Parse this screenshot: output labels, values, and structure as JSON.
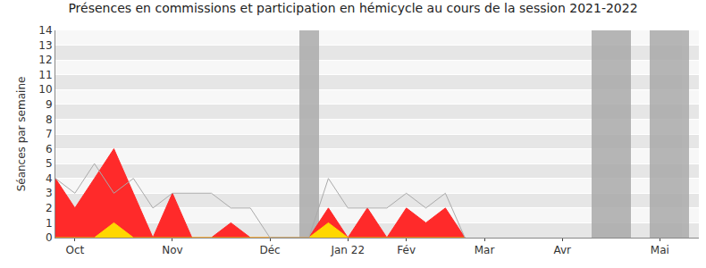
{
  "chart_data": {
    "type": "line",
    "title": "Présences en commissions et participation en hémicycle au cours de la session 2021-2022",
    "y_label": "Séances par semaine",
    "categories": [
      null,
      "Oct",
      null,
      null,
      null,
      null,
      "Nov",
      null,
      null,
      null,
      null,
      "Déc",
      null,
      null,
      null,
      "Jan 22",
      null,
      null,
      "Fév",
      null,
      null,
      null,
      "Mar",
      null,
      null,
      null,
      "Avr",
      null,
      null,
      null,
      null,
      "Mai",
      null,
      null
    ],
    "series": [
      {
        "type": "bar",
        "color": "#aaaaaa",
        "values": [
          null,
          null,
          null,
          null,
          null,
          null,
          null,
          null,
          null,
          null,
          null,
          null,
          null,
          14,
          null,
          null,
          null,
          null,
          null,
          null,
          null,
          null,
          null,
          null,
          null,
          null,
          null,
          null,
          14,
          14,
          null,
          14,
          14,
          null
        ]
      },
      {
        "type": "area",
        "color": "#ff2a2a",
        "values": [
          4,
          2,
          4,
          6,
          3,
          0,
          3,
          0,
          0,
          1,
          0,
          0,
          0,
          0,
          2,
          0,
          2,
          0,
          2,
          1,
          2,
          0,
          null,
          null,
          null,
          null,
          null,
          null,
          null,
          null,
          null,
          null,
          null,
          null
        ]
      },
      {
        "type": "area",
        "color": "#ffd700",
        "values": [
          0,
          0,
          0,
          1,
          0,
          0,
          0,
          0,
          0,
          0,
          0,
          0,
          0,
          0,
          1,
          0,
          0,
          0,
          0,
          0,
          0,
          0,
          null,
          null,
          null,
          null,
          null,
          null,
          null,
          null,
          null,
          null,
          null,
          null
        ]
      },
      {
        "type": "line",
        "color": "#aaaaaa",
        "values": [
          4,
          3,
          5,
          3,
          4,
          2,
          3,
          3,
          3,
          2,
          2,
          0,
          0,
          0,
          4,
          2,
          2,
          2,
          3,
          2,
          3,
          0,
          null,
          null,
          null,
          null,
          null,
          null,
          null,
          null,
          null,
          null,
          null,
          null
        ]
      }
    ],
    "ylim": [
      0,
      14
    ],
    "yticks": [
      0,
      1,
      2,
      3,
      4,
      5,
      6,
      7,
      8,
      9,
      10,
      11,
      12,
      13,
      14
    ],
    "grid": true
  }
}
